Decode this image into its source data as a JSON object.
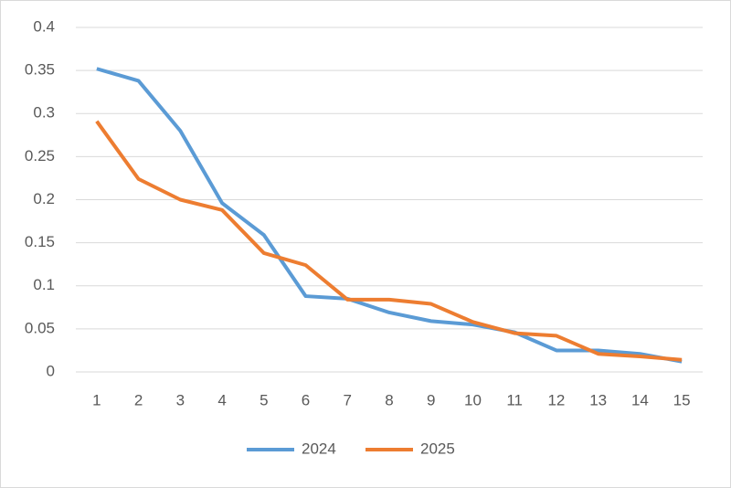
{
  "chart_data": {
    "type": "line",
    "categories": [
      "1",
      "2",
      "3",
      "4",
      "5",
      "6",
      "7",
      "8",
      "9",
      "10",
      "11",
      "12",
      "13",
      "14",
      "15"
    ],
    "series": [
      {
        "name": "2024",
        "color": "#5b9bd5",
        "values": [
          0.352,
          0.338,
          0.28,
          0.196,
          0.159,
          0.088,
          0.085,
          0.069,
          0.059,
          0.055,
          0.046,
          0.025,
          0.025,
          0.021,
          0.012
        ]
      },
      {
        "name": "2025",
        "color": "#ed7d31",
        "values": [
          0.291,
          0.224,
          0.2,
          0.188,
          0.138,
          0.124,
          0.084,
          0.084,
          0.079,
          0.058,
          0.045,
          0.042,
          0.021,
          0.018,
          0.014
        ]
      }
    ],
    "ylim": [
      0,
      0.4
    ],
    "yticks": [
      0,
      0.05,
      0.1,
      0.15,
      0.2,
      0.25,
      0.3,
      0.35,
      0.4
    ],
    "grid": true,
    "legend": "bottom"
  }
}
